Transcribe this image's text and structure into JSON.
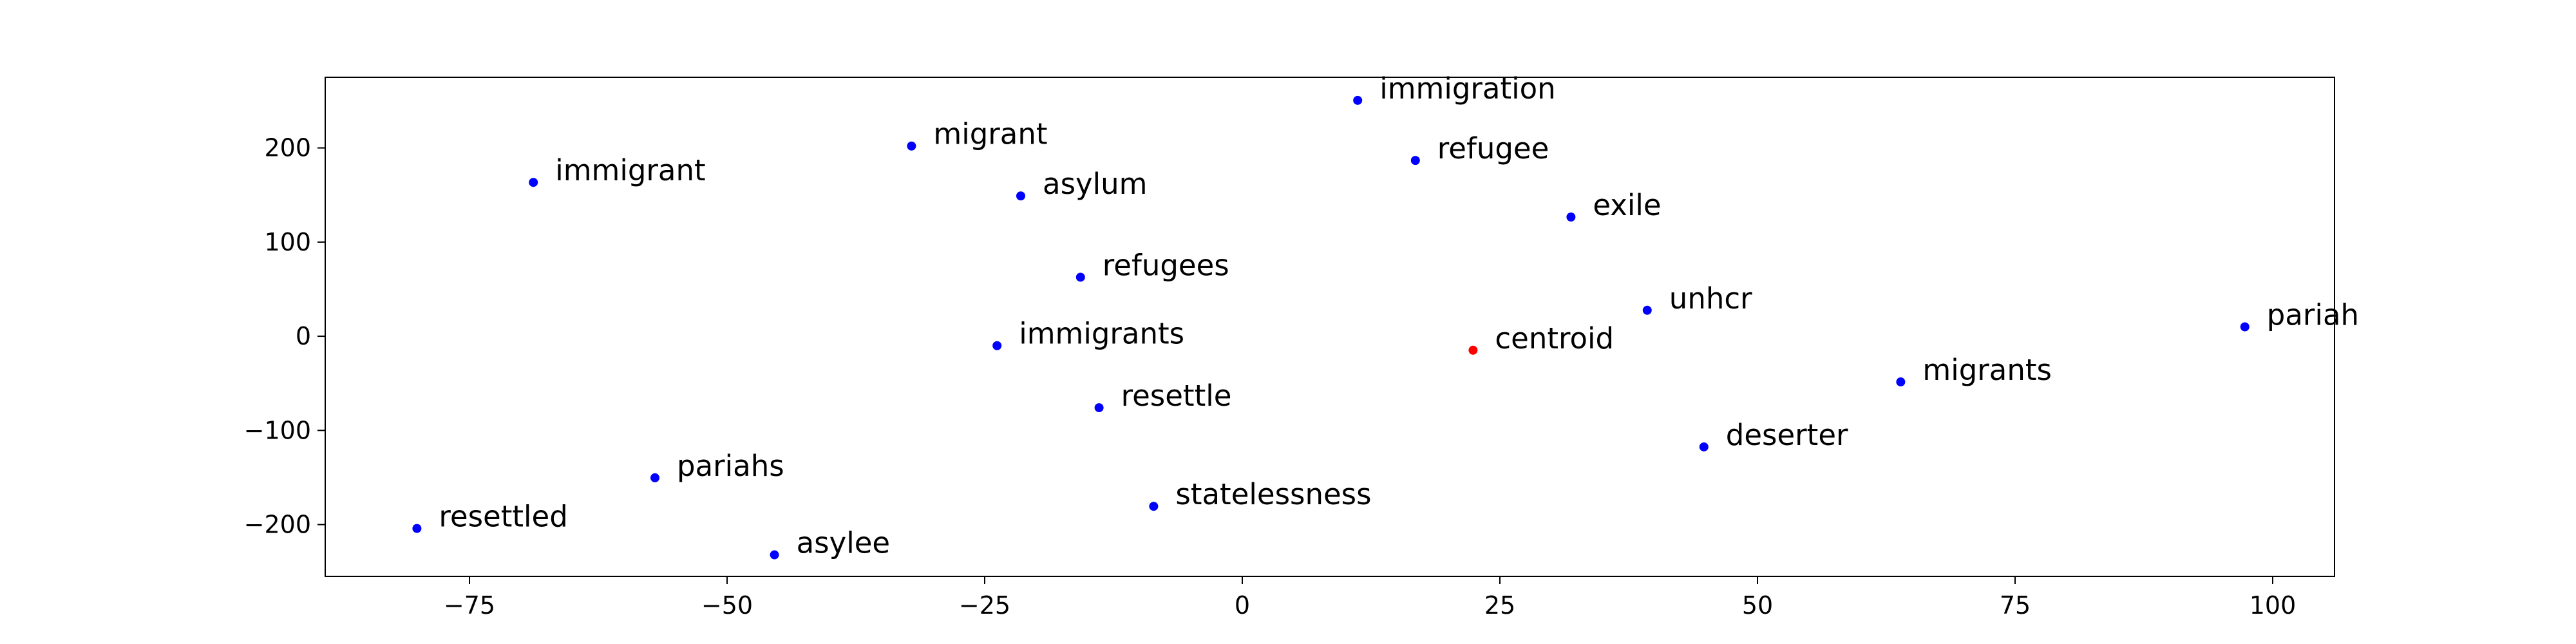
{
  "chart_data": {
    "type": "scatter",
    "title": "",
    "xlabel": "",
    "ylabel": "",
    "xlim": [
      -89,
      106
    ],
    "ylim": [
      -255,
      275
    ],
    "grid": false,
    "legend": "none",
    "x_ticks": [
      -75,
      -50,
      -25,
      0,
      25,
      50,
      75,
      100
    ],
    "y_ticks": [
      -200,
      -100,
      0,
      100,
      200
    ],
    "x_tick_labels": [
      "−75",
      "−50",
      "−25",
      "0",
      "25",
      "50",
      "75",
      "100"
    ],
    "y_tick_labels": [
      "−200",
      "−100",
      "0",
      "100",
      "200"
    ],
    "colors": {
      "word": "#0000ff",
      "centroid": "#ff0000"
    },
    "points": [
      {
        "label": "immigration",
        "x": 11.2,
        "y": 250.5,
        "kind": "word"
      },
      {
        "label": "migrant",
        "x": -32.1,
        "y": 202.0,
        "kind": "word"
      },
      {
        "label": "refugee",
        "x": 16.8,
        "y": 186.7,
        "kind": "word"
      },
      {
        "label": "immigrant",
        "x": -68.8,
        "y": 163.4,
        "kind": "word"
      },
      {
        "label": "asylum",
        "x": -21.5,
        "y": 149.0,
        "kind": "word"
      },
      {
        "label": "exile",
        "x": 31.9,
        "y": 126.6,
        "kind": "word"
      },
      {
        "label": "refugees",
        "x": -15.7,
        "y": 62.7,
        "kind": "word"
      },
      {
        "label": "unhcr",
        "x": 39.3,
        "y": 27.6,
        "kind": "word"
      },
      {
        "label": "pariah",
        "x": 97.3,
        "y": 10.0,
        "kind": "word"
      },
      {
        "label": "immigrants",
        "x": -23.8,
        "y": -10.0,
        "kind": "word"
      },
      {
        "label": "centroid",
        "x": 22.4,
        "y": -14.8,
        "kind": "centroid"
      },
      {
        "label": "migrants",
        "x": 63.9,
        "y": -48.5,
        "kind": "word"
      },
      {
        "label": "resettle",
        "x": -13.9,
        "y": -75.9,
        "kind": "word"
      },
      {
        "label": "deserter",
        "x": 44.8,
        "y": -117.5,
        "kind": "word"
      },
      {
        "label": "pariahs",
        "x": -57.0,
        "y": -150.3,
        "kind": "word"
      },
      {
        "label": "statelessness",
        "x": -8.6,
        "y": -180.6,
        "kind": "word"
      },
      {
        "label": "resettled",
        "x": -80.1,
        "y": -204.1,
        "kind": "word"
      },
      {
        "label": "asylee",
        "x": -45.4,
        "y": -232.1,
        "kind": "word"
      }
    ]
  }
}
